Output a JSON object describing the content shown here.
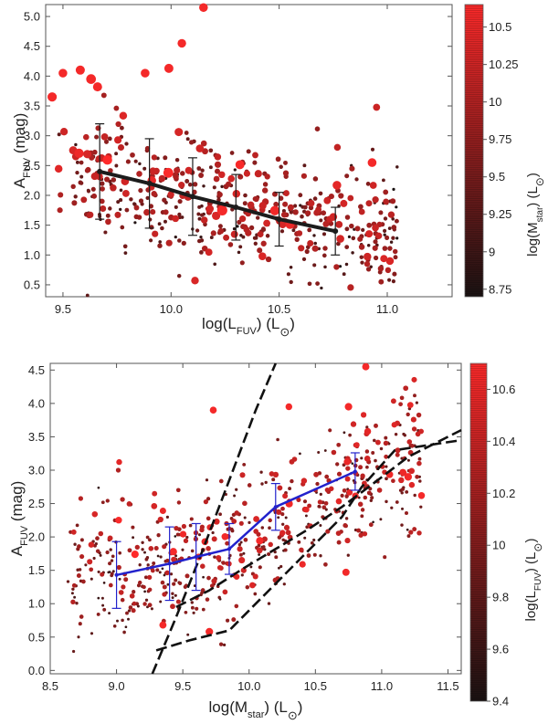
{
  "chart_data": [
    {
      "type": "scatter",
      "title": "",
      "xlabel": "log(L_FUV) (L_sun)",
      "xlabel_parts": {
        "pre": "log(L",
        "sub": "FUV",
        "post": ") (L",
        "sun": "⊙",
        "end": ")"
      },
      "ylabel": "A_FUV (mag)",
      "ylabel_parts": {
        "pre": "A",
        "sub": "FUV",
        "post": " (mag)"
      },
      "xlim": [
        9.42,
        11.3
      ],
      "ylim": [
        0.3,
        5.2
      ],
      "xticks": [
        9.5,
        10.0,
        10.5,
        11.0
      ],
      "xtick_labels": [
        "9.5",
        "10.0",
        "10.5",
        "11.0"
      ],
      "yticks": [
        0.5,
        1.0,
        1.5,
        2.0,
        2.5,
        3.0,
        3.5,
        4.0,
        4.5,
        5.0
      ],
      "ytick_labels": [
        "0.5",
        "1.0",
        "1.5",
        "2.0",
        "2.5",
        "3.0",
        "3.5",
        "4.0",
        "4.5",
        "5.0"
      ],
      "colorbar": {
        "label": "log(M_star) (L_sun)",
        "label_parts": {
          "pre": "log(M",
          "sub": "star",
          "post": ") (L",
          "sun": "⊙",
          "end": ")"
        },
        "range": [
          8.7,
          10.65
        ],
        "ticks": [
          8.75,
          9.0,
          9.25,
          9.5,
          9.75,
          10.0,
          10.25,
          10.5
        ],
        "tick_labels": [
          "8.75",
          "9",
          "9.25",
          "9.5",
          "9.75",
          "10",
          "10.25",
          "10.5"
        ],
        "low_color": "#1a1212",
        "high_color": "#ff2a2a"
      },
      "scatter_cloud": {
        "n": 520,
        "seed": 11,
        "x_range": [
          9.48,
          11.05
        ],
        "trend": [
          [
            9.5,
            2.4
          ],
          [
            10.0,
            2.05
          ],
          [
            10.5,
            1.7
          ],
          [
            11.0,
            1.45
          ]
        ],
        "scatter": 0.55,
        "color_variable": "log(M_star)"
      },
      "outliers": [
        {
          "x": 10.15,
          "y": 5.15
        },
        {
          "x": 10.05,
          "y": 4.55
        },
        {
          "x": 9.5,
          "y": 4.05
        },
        {
          "x": 9.58,
          "y": 4.1
        },
        {
          "x": 9.63,
          "y": 3.95
        },
        {
          "x": 9.66,
          "y": 3.82
        },
        {
          "x": 9.99,
          "y": 4.13
        },
        {
          "x": 9.88,
          "y": 4.05
        },
        {
          "x": 9.45,
          "y": 3.65
        },
        {
          "x": 10.93,
          "y": 2.55
        }
      ],
      "binned_mean": {
        "x": [
          9.67,
          9.9,
          10.1,
          10.3,
          10.5,
          10.76
        ],
        "y": [
          2.4,
          2.2,
          1.98,
          1.8,
          1.6,
          1.4
        ],
        "err_low": [
          0.8,
          0.75,
          0.65,
          0.55,
          0.45,
          0.4
        ],
        "err_high": [
          0.8,
          0.75,
          0.65,
          0.55,
          0.45,
          0.4
        ],
        "color": "#1c1c1c"
      }
    },
    {
      "type": "scatter",
      "title": "",
      "xlabel": "log(M_star) (L_sun)",
      "xlabel_parts": {
        "pre": "log(M",
        "sub": "star",
        "post": ") (L",
        "sun": "⊙",
        "end": ")"
      },
      "ylabel": "A_FUV (mag)",
      "ylabel_parts": {
        "pre": "A",
        "sub": "FUV",
        "post": " (mag)"
      },
      "xlim": [
        8.5,
        11.6
      ],
      "ylim": [
        -0.05,
        4.6
      ],
      "xticks": [
        8.5,
        9.0,
        9.5,
        10.0,
        10.5,
        11.0,
        11.5
      ],
      "xtick_labels": [
        "8.5",
        "9.0",
        "9.5",
        "10.0",
        "10.5",
        "11.0",
        "11.5"
      ],
      "yticks": [
        0.0,
        0.5,
        1.0,
        1.5,
        2.0,
        2.5,
        3.0,
        3.5,
        4.0,
        4.5
      ],
      "ytick_labels": [
        "0.0",
        "0.5",
        "1.0",
        "1.5",
        "2.0",
        "2.5",
        "3.0",
        "3.5",
        "4.0",
        "4.5"
      ],
      "colorbar": {
        "label": "log(L_FUV) (L_sun)",
        "label_parts": {
          "pre": "log(L",
          "sub": "FUV",
          "post": ") (L",
          "sun": "⊙",
          "end": ")"
        },
        "range": [
          9.4,
          10.7
        ],
        "ticks": [
          9.4,
          9.6,
          9.8,
          10.0,
          10.2,
          10.4,
          10.6
        ],
        "tick_labels": [
          "9.4",
          "9.6",
          "9.8",
          "10",
          "10.2",
          "10.4",
          "10.6"
        ],
        "low_color": "#1a1212",
        "high_color": "#ff2a2a"
      },
      "scatter_cloud": {
        "n": 600,
        "seed": 29,
        "x_range": [
          8.62,
          11.3
        ],
        "trend": [
          [
            8.6,
            1.35
          ],
          [
            9.5,
            1.6
          ],
          [
            10.0,
            1.95
          ],
          [
            10.5,
            2.55
          ],
          [
            11.0,
            3.0
          ],
          [
            11.3,
            3.2
          ]
        ],
        "scatter": 0.5,
        "color_variable": "log(L_FUV)"
      },
      "outliers": [
        {
          "x": 10.88,
          "y": 4.55
        },
        {
          "x": 9.73,
          "y": 3.9
        },
        {
          "x": 10.75,
          "y": 3.95
        },
        {
          "x": 10.3,
          "y": 3.95
        },
        {
          "x": 9.7,
          "y": 0.58
        },
        {
          "x": 9.35,
          "y": 0.68
        },
        {
          "x": 11.3,
          "y": 2.62
        },
        {
          "x": 11.2,
          "y": 2.9
        }
      ],
      "binned_mean": {
        "x": [
          9.0,
          9.4,
          9.6,
          9.85,
          10.2,
          10.8
        ],
        "y": [
          1.43,
          1.6,
          1.7,
          1.82,
          2.45,
          2.98
        ],
        "err_low": [
          0.5,
          0.55,
          0.5,
          0.38,
          0.35,
          0.28
        ],
        "err_high": [
          0.5,
          0.55,
          0.5,
          0.38,
          0.35,
          0.28
        ],
        "color": "#2222cc"
      },
      "model_curves": [
        {
          "name": "curve-a",
          "x": [
            9.27,
            9.45,
            9.65,
            9.85,
            10.05,
            10.2
          ],
          "y": [
            -0.05,
            0.8,
            1.8,
            2.85,
            3.9,
            4.6
          ]
        },
        {
          "name": "curve-b",
          "x": [
            9.45,
            9.7,
            9.95,
            10.2,
            10.45,
            10.7,
            10.95,
            11.2,
            11.6
          ],
          "y": [
            0.95,
            1.2,
            1.52,
            1.82,
            2.12,
            2.45,
            2.82,
            3.2,
            3.6
          ]
        },
        {
          "name": "curve-c",
          "x": [
            9.3,
            9.55,
            9.85,
            10.1,
            10.4,
            10.7,
            10.85,
            11.1,
            11.6
          ],
          "y": [
            0.3,
            0.45,
            0.6,
            1.1,
            1.7,
            2.3,
            2.75,
            3.3,
            3.45
          ]
        }
      ]
    }
  ]
}
